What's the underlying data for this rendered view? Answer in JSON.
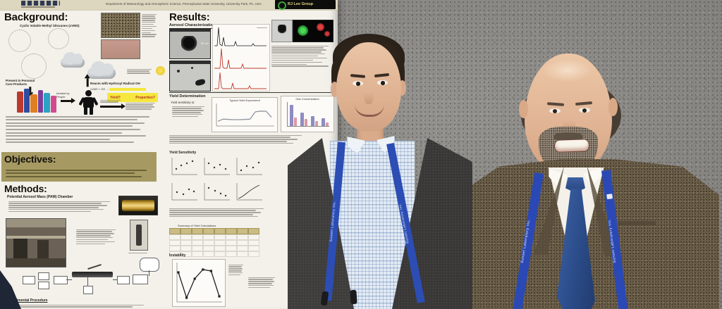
{
  "poster": {
    "header": {
      "affiliation": "Department of Meteorology and Atmospheric Science, Pennsylvania State University, University Park, PA, USA",
      "logo_right_label": "RJ Lee Group"
    },
    "sections": {
      "background": {
        "heading": "Background:",
        "subtitle": "Cyclic Volatile Methyl Siloxanes (cVMS)",
        "label_products": "Present in Personal Care Products",
        "label_inhaled": "Inhaled by People",
        "label_reacts": "Reacts with Hydroxyl Radical OH",
        "eq_text": "cVMS + OH →",
        "note1": "Yield?",
        "note2": "Properties?"
      },
      "objectives": {
        "heading": "Objectives:"
      },
      "methods": {
        "heading": "Methods:",
        "subheading": "Potential Aerosol Mass (PAM) Chamber",
        "procedure_heading": "Experimental Procedure"
      },
      "results": {
        "heading": "Results:",
        "sub_characterization": "Aerosol Characterization",
        "sub_yield": "Yield Determination",
        "list_heading": "Yield sensitivity to:",
        "sub_sensitivity": "Yield Sensitivity",
        "sub_instability": "Instability",
        "em_scale": "50 nm",
        "table_title": "Summary of Yield Calculations"
      }
    }
  },
  "badges": {
    "lanyard_text": "Sunset Laboratory Inc."
  },
  "chart_data": [
    {
      "type": "line",
      "title": "Typical Yield Experiment",
      "x": [
        0,
        1,
        2,
        3,
        4,
        5,
        6,
        7,
        8,
        9,
        10
      ],
      "values": [
        18,
        30,
        28,
        27,
        27,
        28,
        30,
        70,
        74,
        73,
        40
      ],
      "ylim": [
        0,
        100
      ]
    },
    {
      "type": "bar",
      "title": "Gas Concentration",
      "categories": [
        "",
        "",
        "",
        ""
      ],
      "series": [
        {
          "name": "bar-dark",
          "values": [
            95,
            60,
            45,
            35
          ]
        },
        {
          "name": "bar-light",
          "values": [
            38,
            30,
            22,
            16
          ]
        }
      ],
      "colors": [
        "#8e8cc4",
        "#d99aa6"
      ],
      "ylim": [
        0,
        100
      ]
    },
    {
      "type": "line",
      "title": "Instability",
      "x": [
        0,
        1,
        2,
        3,
        4,
        5
      ],
      "values": [
        80,
        8,
        62,
        88,
        84,
        12
      ],
      "ylim": [
        0,
        100
      ]
    }
  ]
}
